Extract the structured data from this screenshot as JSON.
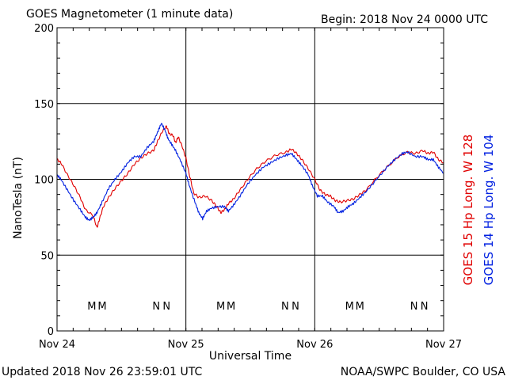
{
  "header": {
    "title": "GOES Magnetometer (1 minute data)",
    "begin": "Begin:  2018 Nov 24 0000 UTC"
  },
  "footer": {
    "updated": "Updated 2018 Nov 26 23:59:01 UTC",
    "source": "NOAA/SWPC Boulder, CO USA"
  },
  "colors": {
    "goes15": "#e00000",
    "goes14": "#0020e0",
    "grid": "#000000"
  },
  "chart_data": {
    "type": "line",
    "title": "GOES Magnetometer (1 minute data)",
    "xlabel": "Universal Time",
    "ylabel": "NanoTesla (nT)",
    "ylim": [
      0,
      200
    ],
    "yticks": [
      "0",
      "50",
      "100",
      "150",
      "200"
    ],
    "xlim": [
      0,
      3
    ],
    "xticks": [
      {
        "x": 0,
        "label": "Nov 24"
      },
      {
        "x": 1,
        "label": "Nov 25"
      },
      {
        "x": 2,
        "label": "Nov 26"
      },
      {
        "x": 3,
        "label": "Nov 27"
      }
    ],
    "grid": true,
    "series": [
      {
        "name": "GOES 15 Hp  Long. W 128",
        "color": "#e00000",
        "points": [
          [
            0.0,
            113
          ],
          [
            0.03,
            111
          ],
          [
            0.08,
            103
          ],
          [
            0.13,
            96
          ],
          [
            0.18,
            88
          ],
          [
            0.22,
            80
          ],
          [
            0.28,
            76
          ],
          [
            0.31,
            68
          ],
          [
            0.33,
            74
          ],
          [
            0.36,
            82
          ],
          [
            0.4,
            88
          ],
          [
            0.45,
            94
          ],
          [
            0.5,
            99
          ],
          [
            0.55,
            104
          ],
          [
            0.6,
            110
          ],
          [
            0.65,
            114
          ],
          [
            0.7,
            117
          ],
          [
            0.75,
            119
          ],
          [
            0.78,
            125
          ],
          [
            0.82,
            132
          ],
          [
            0.85,
            135
          ],
          [
            0.87,
            130
          ],
          [
            0.9,
            129
          ],
          [
            0.92,
            124
          ],
          [
            0.94,
            128
          ],
          [
            0.97,
            122
          ],
          [
            1.0,
            114
          ],
          [
            1.03,
            102
          ],
          [
            1.06,
            91
          ],
          [
            1.1,
            88
          ],
          [
            1.15,
            89
          ],
          [
            1.2,
            86
          ],
          [
            1.24,
            82
          ],
          [
            1.27,
            78
          ],
          [
            1.3,
            80
          ],
          [
            1.33,
            84
          ],
          [
            1.37,
            87
          ],
          [
            1.42,
            93
          ],
          [
            1.48,
            100
          ],
          [
            1.55,
            107
          ],
          [
            1.62,
            112
          ],
          [
            1.7,
            116
          ],
          [
            1.78,
            118
          ],
          [
            1.82,
            120
          ],
          [
            1.86,
            117
          ],
          [
            1.9,
            113
          ],
          [
            1.95,
            107
          ],
          [
            2.0,
            100
          ],
          [
            2.04,
            93
          ],
          [
            2.08,
            90
          ],
          [
            2.12,
            89
          ],
          [
            2.16,
            86
          ],
          [
            2.2,
            85
          ],
          [
            2.25,
            86
          ],
          [
            2.3,
            87
          ],
          [
            2.35,
            90
          ],
          [
            2.4,
            93
          ],
          [
            2.48,
            101
          ],
          [
            2.56,
            108
          ],
          [
            2.65,
            115
          ],
          [
            2.72,
            118
          ],
          [
            2.78,
            117
          ],
          [
            2.84,
            119
          ],
          [
            2.88,
            117
          ],
          [
            2.92,
            118
          ],
          [
            2.96,
            113
          ],
          [
            3.0,
            111
          ]
        ]
      },
      {
        "name": "GOES 14 Hp  Long. W 104",
        "color": "#0020e0",
        "points": [
          [
            0.0,
            103
          ],
          [
            0.03,
            100
          ],
          [
            0.08,
            93
          ],
          [
            0.13,
            86
          ],
          [
            0.18,
            80
          ],
          [
            0.22,
            75
          ],
          [
            0.25,
            73
          ],
          [
            0.28,
            75
          ],
          [
            0.31,
            78
          ],
          [
            0.35,
            85
          ],
          [
            0.4,
            94
          ],
          [
            0.45,
            100
          ],
          [
            0.5,
            105
          ],
          [
            0.55,
            111
          ],
          [
            0.6,
            115
          ],
          [
            0.65,
            115
          ],
          [
            0.7,
            121
          ],
          [
            0.75,
            125
          ],
          [
            0.78,
            131
          ],
          [
            0.81,
            137
          ],
          [
            0.84,
            132
          ],
          [
            0.86,
            127
          ],
          [
            0.89,
            123
          ],
          [
            0.92,
            119
          ],
          [
            0.96,
            112
          ],
          [
            1.0,
            104
          ],
          [
            1.03,
            95
          ],
          [
            1.07,
            85
          ],
          [
            1.1,
            78
          ],
          [
            1.13,
            74
          ],
          [
            1.16,
            79
          ],
          [
            1.2,
            81
          ],
          [
            1.25,
            82
          ],
          [
            1.3,
            82
          ],
          [
            1.33,
            79
          ],
          [
            1.37,
            83
          ],
          [
            1.42,
            89
          ],
          [
            1.48,
            97
          ],
          [
            1.54,
            103
          ],
          [
            1.6,
            108
          ],
          [
            1.66,
            111
          ],
          [
            1.72,
            114
          ],
          [
            1.78,
            116
          ],
          [
            1.82,
            117
          ],
          [
            1.86,
            113
          ],
          [
            1.9,
            109
          ],
          [
            1.95,
            103
          ],
          [
            1.98,
            96
          ],
          [
            2.02,
            89
          ],
          [
            2.06,
            89
          ],
          [
            2.1,
            85
          ],
          [
            2.15,
            82
          ],
          [
            2.18,
            78
          ],
          [
            2.22,
            79
          ],
          [
            2.26,
            82
          ],
          [
            2.3,
            84
          ],
          [
            2.35,
            88
          ],
          [
            2.4,
            92
          ],
          [
            2.48,
            100
          ],
          [
            2.56,
            108
          ],
          [
            2.62,
            113
          ],
          [
            2.68,
            117
          ],
          [
            2.72,
            118
          ],
          [
            2.78,
            115
          ],
          [
            2.84,
            115
          ],
          [
            2.88,
            113
          ],
          [
            2.92,
            113
          ],
          [
            2.96,
            108
          ],
          [
            3.0,
            104
          ]
        ]
      }
    ],
    "markers": [
      {
        "label": "M",
        "series": 1,
        "x": 0.27
      },
      {
        "label": "M",
        "series": 0,
        "x": 0.35
      },
      {
        "label": "N",
        "series": 1,
        "x": 0.77
      },
      {
        "label": "N",
        "series": 0,
        "x": 0.85
      },
      {
        "label": "M",
        "series": 1,
        "x": 1.27
      },
      {
        "label": "M",
        "series": 0,
        "x": 1.35
      },
      {
        "label": "N",
        "series": 1,
        "x": 1.77
      },
      {
        "label": "N",
        "series": 0,
        "x": 1.85
      },
      {
        "label": "M",
        "series": 1,
        "x": 2.27
      },
      {
        "label": "M",
        "series": 0,
        "x": 2.35
      },
      {
        "label": "N",
        "series": 1,
        "x": 2.77
      },
      {
        "label": "N",
        "series": 0,
        "x": 2.85
      }
    ]
  }
}
